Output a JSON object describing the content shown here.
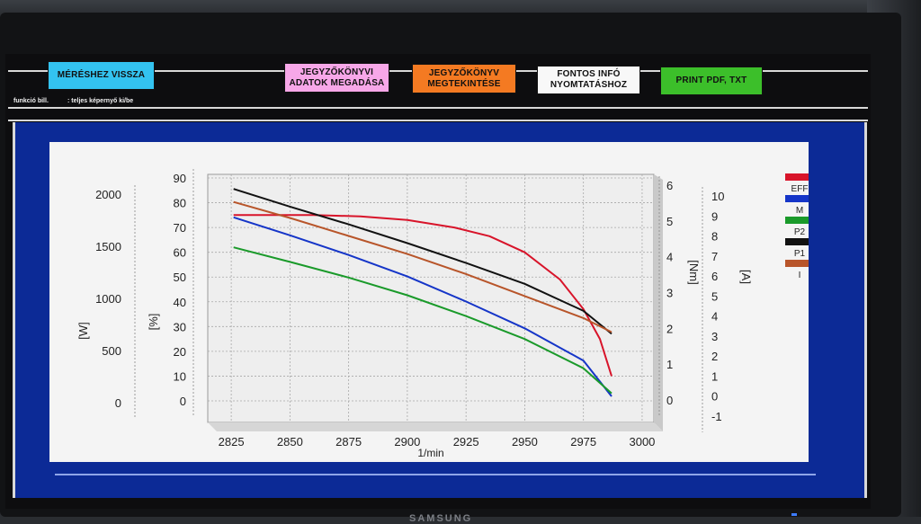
{
  "toolbar": {
    "back_label": "MÉRÉSHEZ VISSZA",
    "protocol_data_label_1": "JEGYZŐKÖNYVI",
    "protocol_data_label_2": "ADATOK MEGADÁSA",
    "protocol_view_label_1": "JEGYZŐKÖNYV",
    "protocol_view_label_2": "MEGTEKINTÉSE",
    "print_info_label_1": "FONTOS INFÓ",
    "print_info_label_2": "NYOMTATÁSHOZ",
    "print_pdf_label": "PRINT PDF, TXT"
  },
  "hints": {
    "fn_key": "funkció bill.",
    "fullscreen": ": teljes képernyő ki/be"
  },
  "colors": {
    "back": "#33c3f0",
    "protocol_data": "#f7a7e8",
    "protocol_view": "#f47a22",
    "print_info": "#f8f8f8",
    "print_pdf": "#3cbf2a",
    "panel": "#0c2a96"
  },
  "monitor": {
    "brand": "SAMSUNG"
  },
  "chart_data": {
    "type": "line",
    "xlabel": "1/min",
    "x_ticks": [
      "2825",
      "2850",
      "2875",
      "2900",
      "2925",
      "2950",
      "2975",
      "3000"
    ],
    "xlim": [
      2815,
      3005
    ],
    "axes": {
      "W": {
        "label": "[W]",
        "ticks": [
          "2000",
          "1500",
          "1000",
          "500",
          "0"
        ],
        "range": [
          0,
          2200
        ]
      },
      "pct": {
        "label": "[%]",
        "ticks": [
          "90",
          "80",
          "70",
          "60",
          "50",
          "40",
          "30",
          "20",
          "10",
          "0"
        ],
        "range": [
          0,
          90
        ]
      },
      "Nm": {
        "label": "[Nm]",
        "ticks": [
          "6",
          "5",
          "4",
          "3",
          "2",
          "1",
          "0"
        ],
        "range": [
          0,
          6
        ]
      },
      "A": {
        "label": "[A]",
        "ticks": [
          "10",
          "9",
          "8",
          "7",
          "6",
          "5",
          "4",
          "3",
          "2",
          "1",
          "0",
          "-1"
        ],
        "range": [
          -1,
          10
        ]
      }
    },
    "grid": true,
    "legend_position": "right",
    "series": [
      {
        "name": "EFF",
        "color": "#d8142a",
        "axis": "pct",
        "x": [
          2826,
          2860,
          2880,
          2900,
          2920,
          2935,
          2950,
          2965,
          2975,
          2982,
          2987
        ],
        "y": [
          75,
          75,
          74.5,
          73,
          70,
          66.5,
          60,
          49,
          37,
          25,
          10
        ]
      },
      {
        "name": "M",
        "color": "#1535c8",
        "axis": "Nm",
        "x": [
          2826,
          2850,
          2875,
          2900,
          2925,
          2950,
          2975,
          2987
        ],
        "y": [
          5.1,
          4.6,
          4.05,
          3.45,
          2.75,
          2.0,
          1.1,
          0.1
        ]
      },
      {
        "name": "P2",
        "color": "#1a9a2a",
        "axis": "W",
        "x": [
          2826,
          2850,
          2875,
          2900,
          2925,
          2950,
          2975,
          2987
        ],
        "y": [
          1490,
          1350,
          1200,
          1030,
          830,
          610,
          330,
          90
        ]
      },
      {
        "name": "P1",
        "color": "#111111",
        "axis": "W",
        "x": [
          2826,
          2850,
          2875,
          2900,
          2925,
          2950,
          2975,
          2987
        ],
        "y": [
          2050,
          1880,
          1710,
          1530,
          1340,
          1140,
          880,
          660
        ]
      },
      {
        "name": "I",
        "color": "#b8552a",
        "axis": "A",
        "x": [
          2826,
          2850,
          2875,
          2900,
          2925,
          2950,
          2975,
          2987
        ],
        "y": [
          9.7,
          8.9,
          8.0,
          7.1,
          6.1,
          5.0,
          3.9,
          3.2
        ]
      }
    ]
  }
}
